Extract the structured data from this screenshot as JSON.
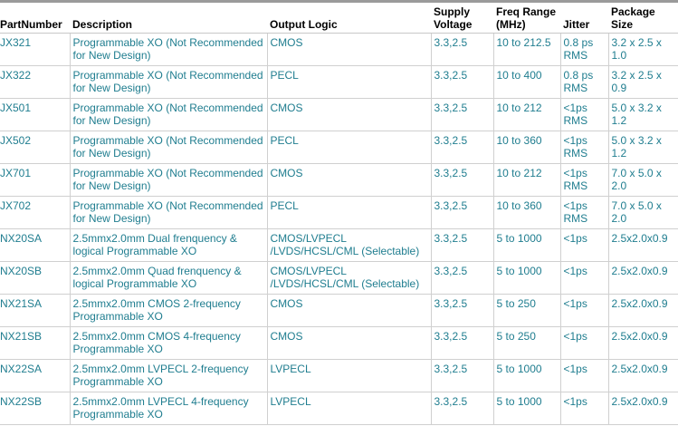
{
  "table": {
    "headers": [
      "PartNumber",
      "Description",
      "Output Logic",
      "Supply Voltage",
      "Freq Range (MHz)",
      "Jitter",
      "Package Size"
    ],
    "rows": [
      [
        "JX321",
        "Programmable XO (Not Recommended for New Design)",
        "CMOS",
        "3.3,2.5",
        "10 to 212.5",
        "0.8 ps RMS",
        "3.2 x 2.5 x 1.0"
      ],
      [
        "JX322",
        "Programmable XO (Not Recommended for New Design)",
        "PECL",
        "3.3,2.5",
        "10 to 400",
        "0.8 ps RMS",
        "3.2 x 2.5 x 0.9"
      ],
      [
        "JX501",
        "Programmable XO (Not Recommended for New Design)",
        "CMOS",
        "3.3,2.5",
        "10 to 212",
        "<1ps RMS",
        "5.0 x 3.2 x 1.2"
      ],
      [
        "JX502",
        "Programmable XO (Not Recommended for New Design)",
        "PECL",
        "3.3,2.5",
        "10 to 360",
        "<1ps RMS",
        "5.0 x 3.2 x 1.2"
      ],
      [
        "JX701",
        "Programmable XO (Not Recommended for New Design)",
        "CMOS",
        "3.3,2.5",
        "10 to 212",
        "<1ps RMS",
        "7.0 x 5.0 x 2.0"
      ],
      [
        "JX702",
        "Programmable XO (Not Recommended for New Design)",
        "PECL",
        "3.3,2.5",
        "10 to 360",
        "<1ps RMS",
        "7.0 x 5.0 x 2.0"
      ],
      [
        "NX20SA",
        "2.5mmx2.0mm Dual frenquency & logical Programmable XO",
        "CMOS/LVPECL /LVDS/HCSL/CML (Selectable)",
        "3.3,2.5",
        "5 to 1000",
        "<1ps",
        "2.5x2.0x0.9"
      ],
      [
        "NX20SB",
        "2.5mmx2.0mm Quad frenquency & logical Programmable XO",
        "CMOS/LVPECL /LVDS/HCSL/CML (Selectable)",
        "3.3,2.5",
        "5 to 1000",
        "<1ps",
        "2.5x2.0x0.9"
      ],
      [
        "NX21SA",
        "2.5mmx2.0mm CMOS 2-frequency Programmable XO",
        "CMOS",
        "3.3,2.5",
        "5 to 250",
        "<1ps",
        "2.5x2.0x0.9"
      ],
      [
        "NX21SB",
        "2.5mmx2.0mm CMOS 4-frequency Programmable XO",
        "CMOS",
        "3.3,2.5",
        "5 to 250",
        "<1ps",
        "2.5x2.0x0.9"
      ],
      [
        "NX22SA",
        "2.5mmx2.0mm LVPECL 2-frequency Programmable XO",
        "LVPECL",
        "3.3,2.5",
        "5 to 1000",
        "<1ps",
        "2.5x2.0x0.9"
      ],
      [
        "NX22SB",
        "2.5mmx2.0mm LVPECL 4-frequency Programmable XO",
        "LVPECL",
        "3.3,2.5",
        "5 to 1000",
        "<1ps",
        "2.5x2.0x0.9"
      ]
    ]
  }
}
